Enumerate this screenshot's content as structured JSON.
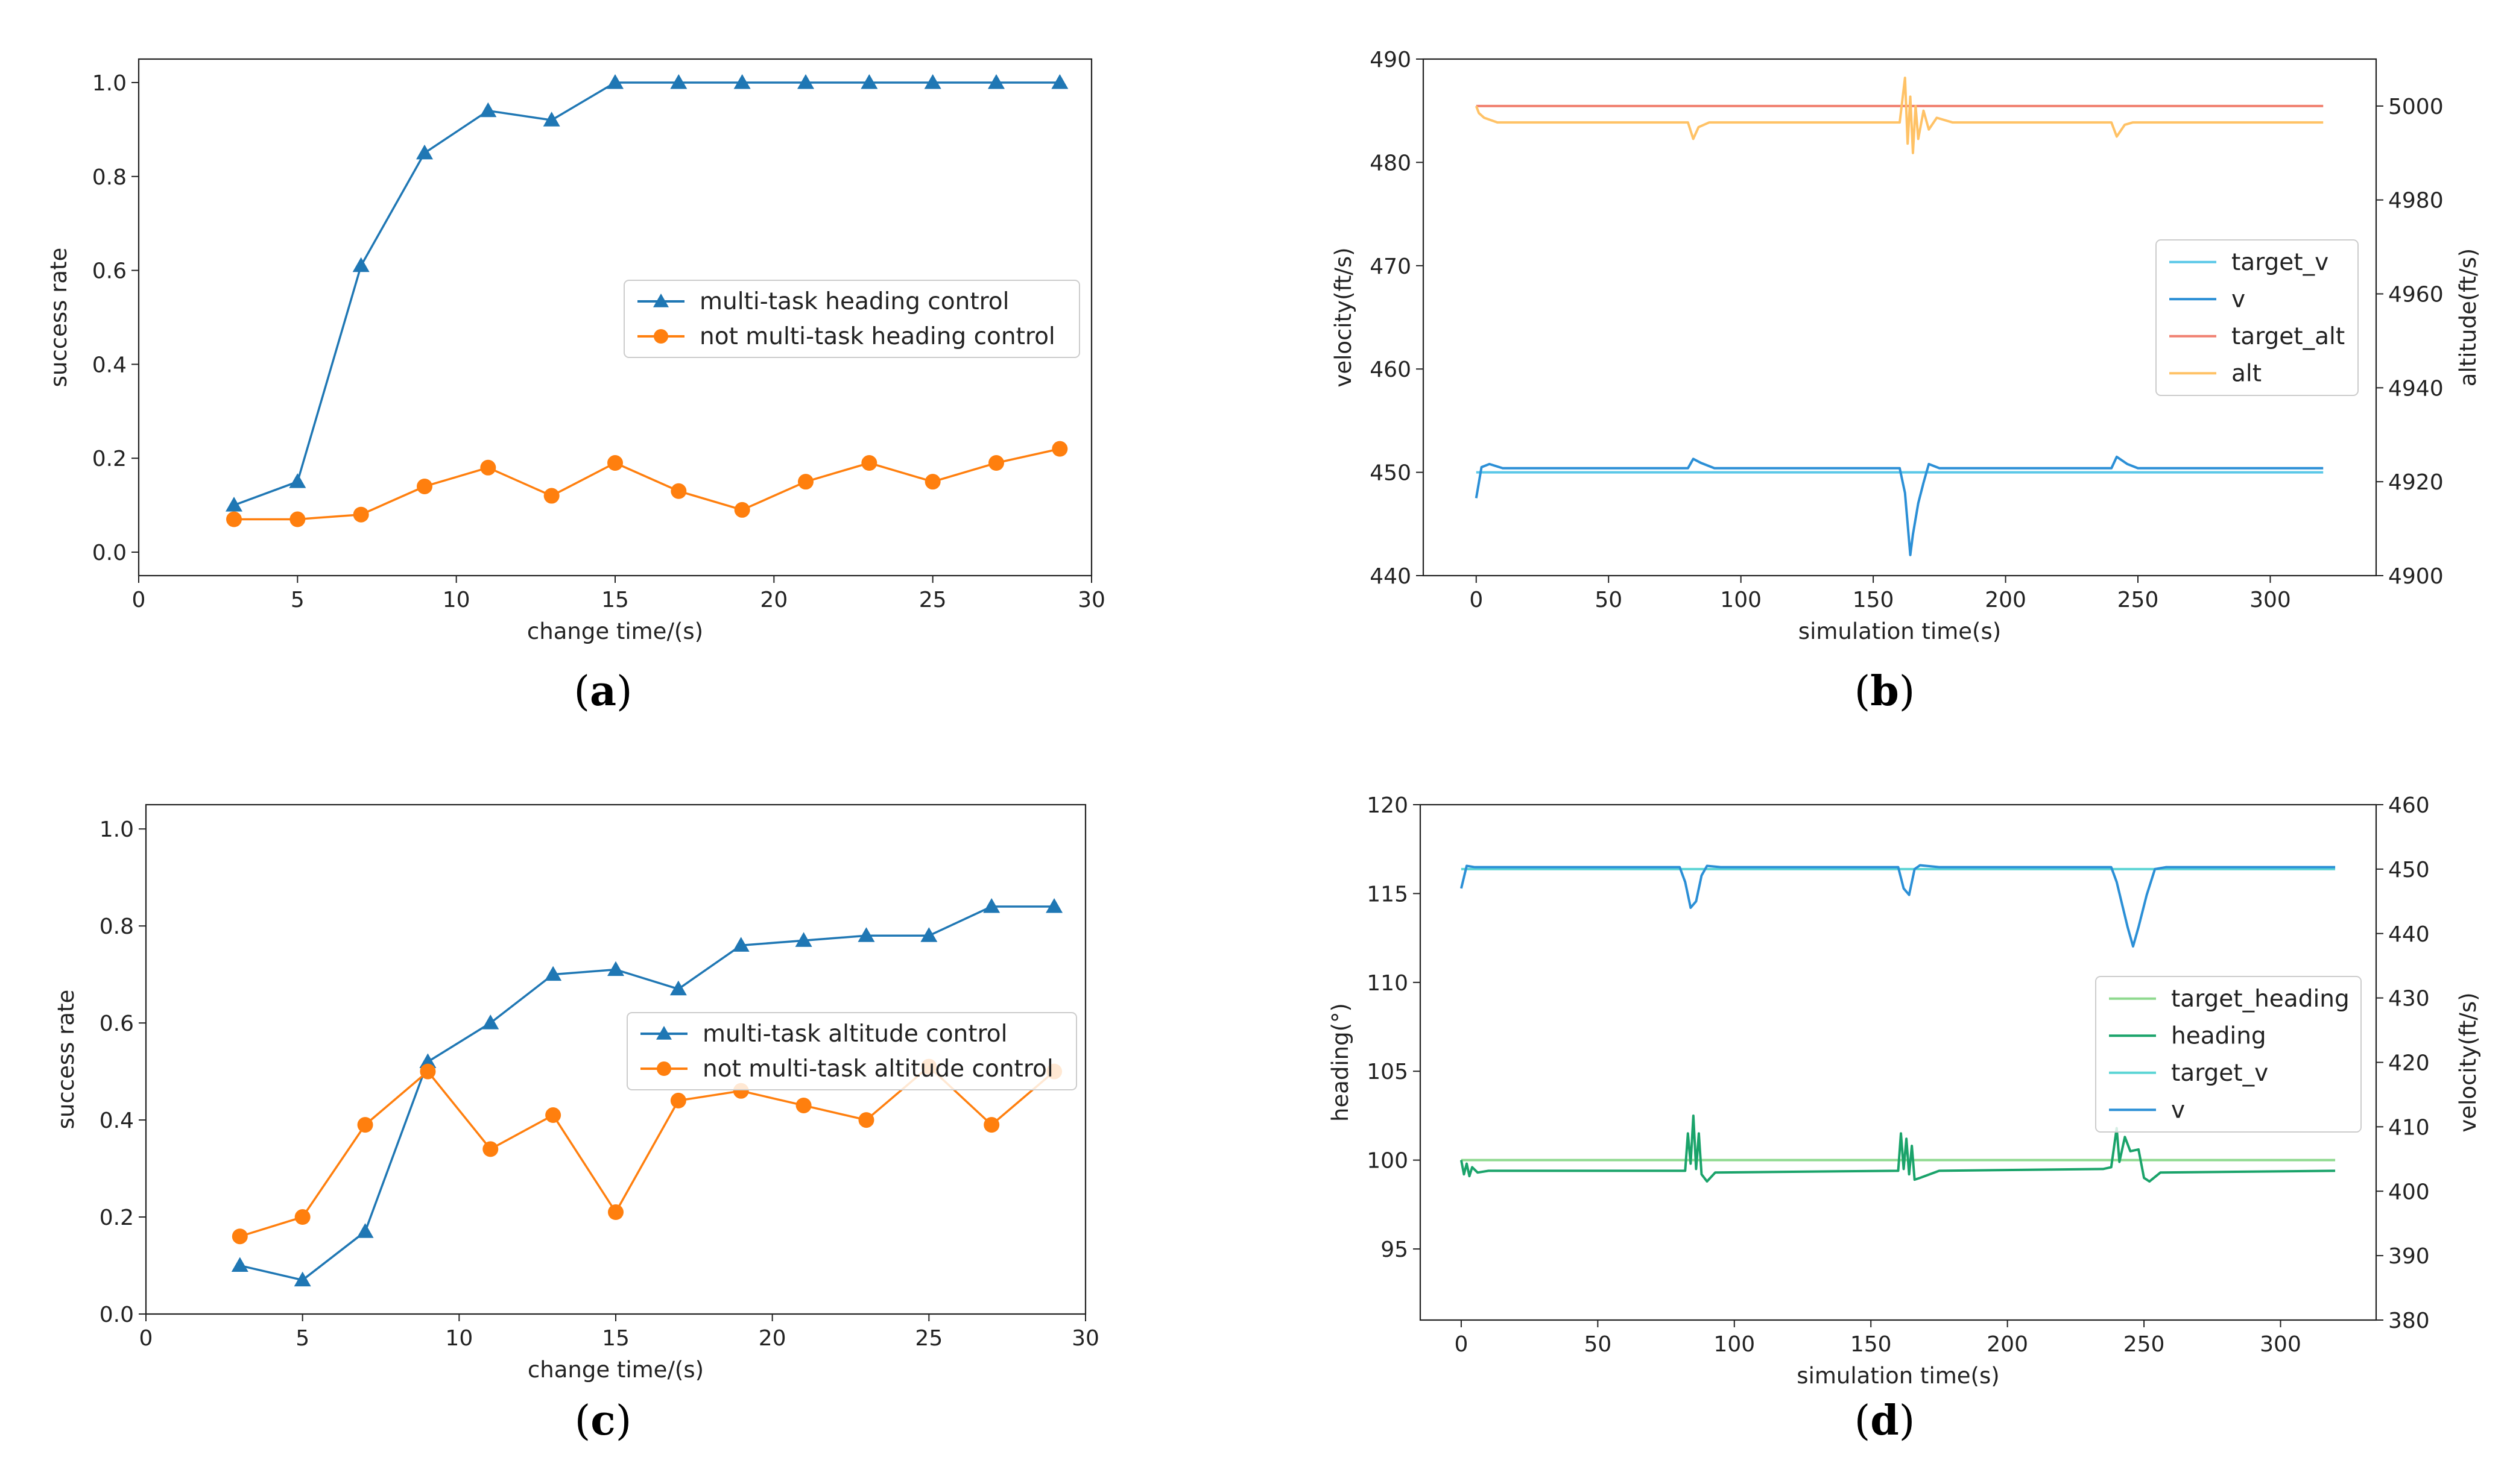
{
  "chart_data": [
    {
      "id": "a",
      "type": "line",
      "caption": {
        "open": "(",
        "letter": "a",
        "close": ")"
      },
      "xlabel": "change time/(s)",
      "ylabel": "success rate",
      "xlim": [
        0,
        30
      ],
      "ylim": [
        -0.05,
        1.05
      ],
      "xticks": [
        0,
        5,
        10,
        15,
        20,
        25,
        30
      ],
      "yticks": [
        0.0,
        0.2,
        0.4,
        0.6,
        0.8,
        1.0
      ],
      "x": [
        3,
        5,
        7,
        9,
        11,
        13,
        15,
        17,
        19,
        21,
        23,
        25,
        27,
        29
      ],
      "series": [
        {
          "name": "multi-task heading control",
          "color": "#1f77b4",
          "marker": "triangle",
          "values": [
            0.1,
            0.15,
            0.61,
            0.85,
            0.94,
            0.92,
            1.0,
            1.0,
            1.0,
            1.0,
            1.0,
            1.0,
            1.0,
            1.0
          ]
        },
        {
          "name": "not multi-task heading control",
          "color": "#ff7f0e",
          "marker": "circle",
          "values": [
            0.07,
            0.07,
            0.08,
            0.14,
            0.18,
            0.12,
            0.19,
            0.13,
            0.09,
            0.15,
            0.19,
            0.15,
            0.19,
            0.22
          ]
        }
      ],
      "legend": "center-right"
    },
    {
      "id": "b",
      "type": "line",
      "caption": {
        "open": "(",
        "letter": "b",
        "close": ")"
      },
      "xlabel": "simulation time(s)",
      "ylabel": "velocity(ft/s)",
      "ylabel_right": "altitude(ft/s)",
      "xlim": [
        -20,
        340
      ],
      "ylim": [
        440,
        490
      ],
      "ylim_right": [
        4900,
        5010
      ],
      "xticks": [
        0,
        50,
        100,
        150,
        200,
        250,
        300
      ],
      "yticks": [
        440,
        450,
        460,
        470,
        480,
        490
      ],
      "yticks_right": [
        4900,
        4920,
        4940,
        4960,
        4980,
        5000
      ],
      "series": [
        {
          "name": "target_v",
          "color": "#5bc8e8",
          "axis": "left",
          "points": [
            [
              0,
              450
            ],
            [
              320,
              450
            ]
          ]
        },
        {
          "name": "v",
          "color": "#2b8fd6",
          "axis": "left",
          "points": [
            [
              0,
              447.5
            ],
            [
              2,
              450.5
            ],
            [
              5,
              450.8
            ],
            [
              10,
              450.4
            ],
            [
              80,
              450.4
            ],
            [
              82,
              451.3
            ],
            [
              85,
              450.9
            ],
            [
              90,
              450.4
            ],
            [
              160,
              450.4
            ],
            [
              162,
              448
            ],
            [
              164,
              442
            ],
            [
              165,
              444
            ],
            [
              167,
              447
            ],
            [
              169,
              449
            ],
            [
              171,
              450.8
            ],
            [
              175,
              450.4
            ],
            [
              240,
              450.4
            ],
            [
              242,
              451.5
            ],
            [
              246,
              450.8
            ],
            [
              250,
              450.4
            ],
            [
              320,
              450.4
            ]
          ]
        },
        {
          "name": "target_alt",
          "color": "#f08070",
          "axis": "right",
          "points": [
            [
              0,
              5000
            ],
            [
              320,
              5000
            ]
          ]
        },
        {
          "name": "alt",
          "color": "#ffc266",
          "axis": "right",
          "points": [
            [
              0,
              5000
            ],
            [
              1,
              4998.5
            ],
            [
              3,
              4997.5
            ],
            [
              8,
              4996.5
            ],
            [
              80,
              4996.5
            ],
            [
              82,
              4993
            ],
            [
              84,
              4995.5
            ],
            [
              88,
              4996.5
            ],
            [
              160,
              4996.5
            ],
            [
              162,
              5006
            ],
            [
              163,
              4992
            ],
            [
              164,
              5002
            ],
            [
              165,
              4990
            ],
            [
              166,
              5000
            ],
            [
              167,
              4993
            ],
            [
              169,
              4999
            ],
            [
              171,
              4995
            ],
            [
              174,
              4997.5
            ],
            [
              180,
              4996.5
            ],
            [
              240,
              4996.5
            ],
            [
              242,
              4993.5
            ],
            [
              245,
              4996
            ],
            [
              248,
              4996.5
            ],
            [
              320,
              4996.5
            ]
          ]
        }
      ],
      "legend": "center-right"
    },
    {
      "id": "c",
      "type": "line",
      "caption": {
        "open": "(",
        "letter": "c",
        "close": ")"
      },
      "xlabel": "change time/(s)",
      "ylabel": "success rate",
      "xlim": [
        0,
        30
      ],
      "ylim": [
        0.0,
        1.05
      ],
      "xticks": [
        0,
        5,
        10,
        15,
        20,
        25,
        30
      ],
      "yticks": [
        0.0,
        0.2,
        0.4,
        0.6,
        0.8,
        1.0
      ],
      "x": [
        3,
        5,
        7,
        9,
        11,
        13,
        15,
        17,
        19,
        21,
        23,
        25,
        27,
        29
      ],
      "series": [
        {
          "name": "multi-task altitude control",
          "color": "#1f77b4",
          "marker": "triangle",
          "values": [
            0.1,
            0.07,
            0.17,
            0.52,
            0.6,
            0.7,
            0.71,
            0.67,
            0.76,
            0.77,
            0.78,
            0.78,
            0.84,
            0.84
          ]
        },
        {
          "name": "not multi-task altitude control",
          "color": "#ff7f0e",
          "marker": "circle",
          "values": [
            0.16,
            0.2,
            0.39,
            0.5,
            0.34,
            0.41,
            0.21,
            0.44,
            0.46,
            0.43,
            0.4,
            0.51,
            0.39,
            0.5
          ]
        }
      ],
      "legend": "center-right"
    },
    {
      "id": "d",
      "type": "line",
      "caption": {
        "open": "(",
        "letter": "d",
        "close": ")"
      },
      "xlabel": "simulation time(s)",
      "ylabel": "heading(°)",
      "ylabel_right": "velocity(ft/s)",
      "xlim": [
        -15,
        335
      ],
      "ylim": [
        91,
        120
      ],
      "ylim_right": [
        380,
        460
      ],
      "xticks": [
        0,
        50,
        100,
        150,
        200,
        250,
        300
      ],
      "yticks": [
        95,
        100,
        105,
        110,
        115,
        120
      ],
      "yticks_right": [
        380,
        390,
        400,
        410,
        420,
        430,
        440,
        450,
        460
      ],
      "series": [
        {
          "name": "target_heading",
          "color": "#8fd98f",
          "axis": "left",
          "points": [
            [
              0,
              100
            ],
            [
              320,
              100
            ]
          ]
        },
        {
          "name": "heading",
          "color": "#1aa36a",
          "axis": "left",
          "points": [
            [
              0,
              100
            ],
            [
              1,
              99.2
            ],
            [
              2,
              99.8
            ],
            [
              3,
              99.1
            ],
            [
              4,
              99.6
            ],
            [
              6,
              99.3
            ],
            [
              10,
              99.4
            ],
            [
              82,
              99.4
            ],
            [
              83,
              101.5
            ],
            [
              84,
              99.8
            ],
            [
              85,
              102.5
            ],
            [
              86,
              99.5
            ],
            [
              87,
              101.5
            ],
            [
              88,
              99.2
            ],
            [
              90,
              98.8
            ],
            [
              93,
              99.3
            ],
            [
              160,
              99.4
            ],
            [
              161,
              101.5
            ],
            [
              162,
              99.5
            ],
            [
              163,
              101.2
            ],
            [
              164,
              99.2
            ],
            [
              165,
              100.8
            ],
            [
              166,
              98.9
            ],
            [
              168,
              99.0
            ],
            [
              175,
              99.4
            ],
            [
              235,
              99.5
            ],
            [
              238,
              99.6
            ],
            [
              240,
              101.8
            ],
            [
              241,
              99.9
            ],
            [
              243,
              101.3
            ],
            [
              245,
              100.5
            ],
            [
              248,
              100.6
            ],
            [
              250,
              99.0
            ],
            [
              252,
              98.8
            ],
            [
              256,
              99.3
            ],
            [
              320,
              99.4
            ]
          ]
        },
        {
          "name": "target_v",
          "color": "#5dd5d5",
          "axis": "right",
          "points": [
            [
              0,
              450
            ],
            [
              320,
              450
            ]
          ]
        },
        {
          "name": "v",
          "color": "#2b8fd6",
          "axis": "right",
          "points": [
            [
              0,
              447
            ],
            [
              2,
              450.5
            ],
            [
              5,
              450.3
            ],
            [
              80,
              450.3
            ],
            [
              82,
              448
            ],
            [
              84,
              444
            ],
            [
              86,
              445
            ],
            [
              88,
              449
            ],
            [
              90,
              450.5
            ],
            [
              95,
              450.3
            ],
            [
              160,
              450.3
            ],
            [
              162,
              447
            ],
            [
              164,
              446
            ],
            [
              166,
              450
            ],
            [
              168,
              450.6
            ],
            [
              175,
              450.3
            ],
            [
              238,
              450.3
            ],
            [
              240,
              448
            ],
            [
              244,
              441
            ],
            [
              246,
              438
            ],
            [
              248,
              441
            ],
            [
              251,
              446
            ],
            [
              254,
              450
            ],
            [
              258,
              450.3
            ],
            [
              320,
              450.3
            ]
          ]
        }
      ],
      "legend": "center-right"
    }
  ]
}
